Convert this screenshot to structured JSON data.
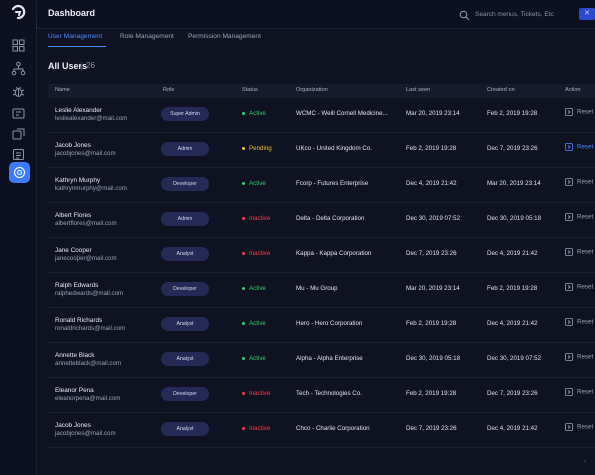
{
  "header": {
    "title": "Dashboard",
    "search_placeholder": "Search menus, Tickets, Etc"
  },
  "tabs": [
    {
      "label": "User Management",
      "active": true
    },
    {
      "label": "Role Management",
      "active": false
    },
    {
      "label": "Permission Management",
      "active": false
    }
  ],
  "users": {
    "title": "All Users",
    "count": "26"
  },
  "columns": [
    "Name",
    "Role",
    "Status",
    "Organization",
    "Last seen",
    "Created on",
    "Action"
  ],
  "rows": [
    {
      "name": "Leslie Alexander",
      "email": "lesliealexander@mail.com",
      "role": "Super Admin",
      "status": "Active",
      "org": "WCMC - Weill Cornell Medicine...",
      "last_seen": "Mar 20, 2019 23:14",
      "created": "Feb 2, 2019 19:28",
      "action": "Reset"
    },
    {
      "name": "Jacob Jones",
      "email": "jacobjones@mail.com",
      "role": "Admin",
      "status": "Pending",
      "org": "UKco - United Kingdom Co.",
      "last_seen": "Feb 2, 2019 19:28",
      "created": "Dec 7, 2019 23:26",
      "action": "Reset"
    },
    {
      "name": "Kathryn Murphy",
      "email": "kathrynmurphy@mail.com",
      "role": "Developer",
      "status": "Active",
      "org": "Fcorp - Futures Enterprise",
      "last_seen": "Dec 4, 2019 21:42",
      "created": "Mar 20, 2019 23:14",
      "action": "Reset"
    },
    {
      "name": "Albert Flores",
      "email": "albertflores@mail.com",
      "role": "Admin",
      "status": "Inactive",
      "org": "Delta - Delta Corporation",
      "last_seen": "Dec 30, 2019 07:52",
      "created": "Dec 30, 2019 05:18",
      "action": "Reset"
    },
    {
      "name": "Jane Cooper",
      "email": "janecooper@mail.com",
      "role": "Analyst",
      "status": "Inactive",
      "org": "Kappa - Kappa Corporation",
      "last_seen": "Dec 7, 2019 23:26",
      "created": "Dec 4, 2019 21:42",
      "action": "Reset"
    },
    {
      "name": "Ralph Edwards",
      "email": "ralphedwards@mail.com",
      "role": "Developer",
      "status": "Active",
      "org": "Mu - Mu Group",
      "last_seen": "Mar 20, 2019 23:14",
      "created": "Feb 2, 2019 19:28",
      "action": "Reset"
    },
    {
      "name": "Ronald Richards",
      "email": "ronaldrichards@mail.com",
      "role": "Analyst",
      "status": "Active",
      "org": "Hero - Hero Corporation",
      "last_seen": "Feb 2, 2019 19:28",
      "created": "Dec 4, 2019 21:42",
      "action": "Reset"
    },
    {
      "name": "Annette Black",
      "email": "annetteblack@mail.com",
      "role": "Analyst",
      "status": "Active",
      "org": "Alpha - Alpha Enterprise",
      "last_seen": "Dec 30, 2019 05:18",
      "created": "Dec 30, 2019 07:52",
      "action": "Reset"
    },
    {
      "name": "Eleanor Pena",
      "email": "eleanorpena@mail.com",
      "role": "Developer",
      "status": "Inactive",
      "org": "Tech - Technologies Co.",
      "last_seen": "Feb 2, 2019 19:28",
      "created": "Dec 7, 2019 23:26",
      "action": "Reset"
    },
    {
      "name": "Jacob Jones",
      "email": "jacobjones@mail.com",
      "role": "Analyst",
      "status": "Inactive",
      "org": "Chco - Charlie Corporation",
      "last_seen": "Dec 7, 2019 23:26",
      "created": "Dec 4, 2019 21:42",
      "action": "Reset"
    }
  ],
  "status_colors": {
    "Active": "#2fcf6a",
    "Pending": "#f2c230",
    "Inactive": "#ff3b4a"
  },
  "sidebar": {
    "icons": [
      "grid-icon",
      "hierarchy-icon",
      "bug-icon",
      "ticket-icon",
      "tag-icon",
      "list-icon",
      "settings-icon"
    ],
    "active": "settings-icon"
  }
}
